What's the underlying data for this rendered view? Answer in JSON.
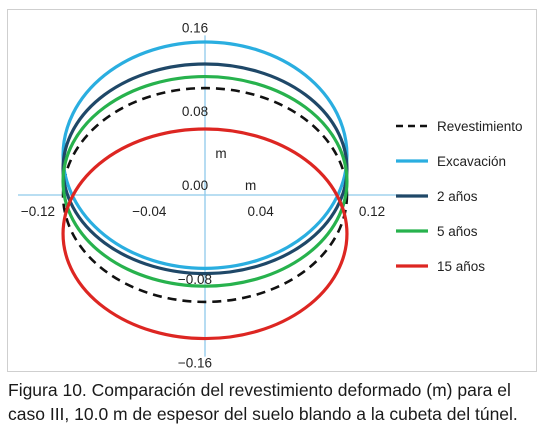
{
  "chart_data": {
    "type": "line",
    "title": "",
    "xlabel": "m",
    "ylabel": "m",
    "xlim": [
      -0.12,
      0.12
    ],
    "ylim": [
      -0.16,
      0.16
    ],
    "x_ticks": [
      "−0.12",
      "−0.04",
      "0.04",
      "0.12"
    ],
    "y_ticks": [
      "0.16",
      "0.08",
      "0.00",
      "−0.08",
      "−0.16"
    ],
    "grid": false,
    "legend_position": "right",
    "series": [
      {
        "name": "Revestimiento",
        "shape": "ellipse",
        "center": [
          0.0,
          0.0
        ],
        "semi_axis_x": 0.102,
        "semi_axis_y": 0.102,
        "color": "#111111",
        "dash": true
      },
      {
        "name": "Excavación",
        "shape": "ellipse",
        "center": [
          0.0,
          0.038
        ],
        "semi_axis_x": 0.102,
        "semi_axis_y": 0.108,
        "color": "#2aaee0",
        "dash": false
      },
      {
        "name": "2 años",
        "shape": "ellipse",
        "center": [
          0.0,
          0.025
        ],
        "semi_axis_x": 0.102,
        "semi_axis_y": 0.1,
        "color": "#1f4868",
        "dash": false
      },
      {
        "name": "5 años",
        "shape": "ellipse",
        "center": [
          0.0,
          0.013
        ],
        "semi_axis_x": 0.102,
        "semi_axis_y": 0.1,
        "color": "#27b24d",
        "dash": false
      },
      {
        "name": "15 años",
        "shape": "ellipse",
        "center": [
          0.0,
          -0.037
        ],
        "semi_axis_x": 0.102,
        "semi_axis_y": 0.1,
        "color": "#dd2622",
        "dash": false
      }
    ]
  },
  "caption": {
    "line1": "Figura 10. Comparación del revestimiento deformado (m) para el",
    "line2": "caso III, 10.0 m de espesor del suelo blando a la cubeta del túnel."
  }
}
